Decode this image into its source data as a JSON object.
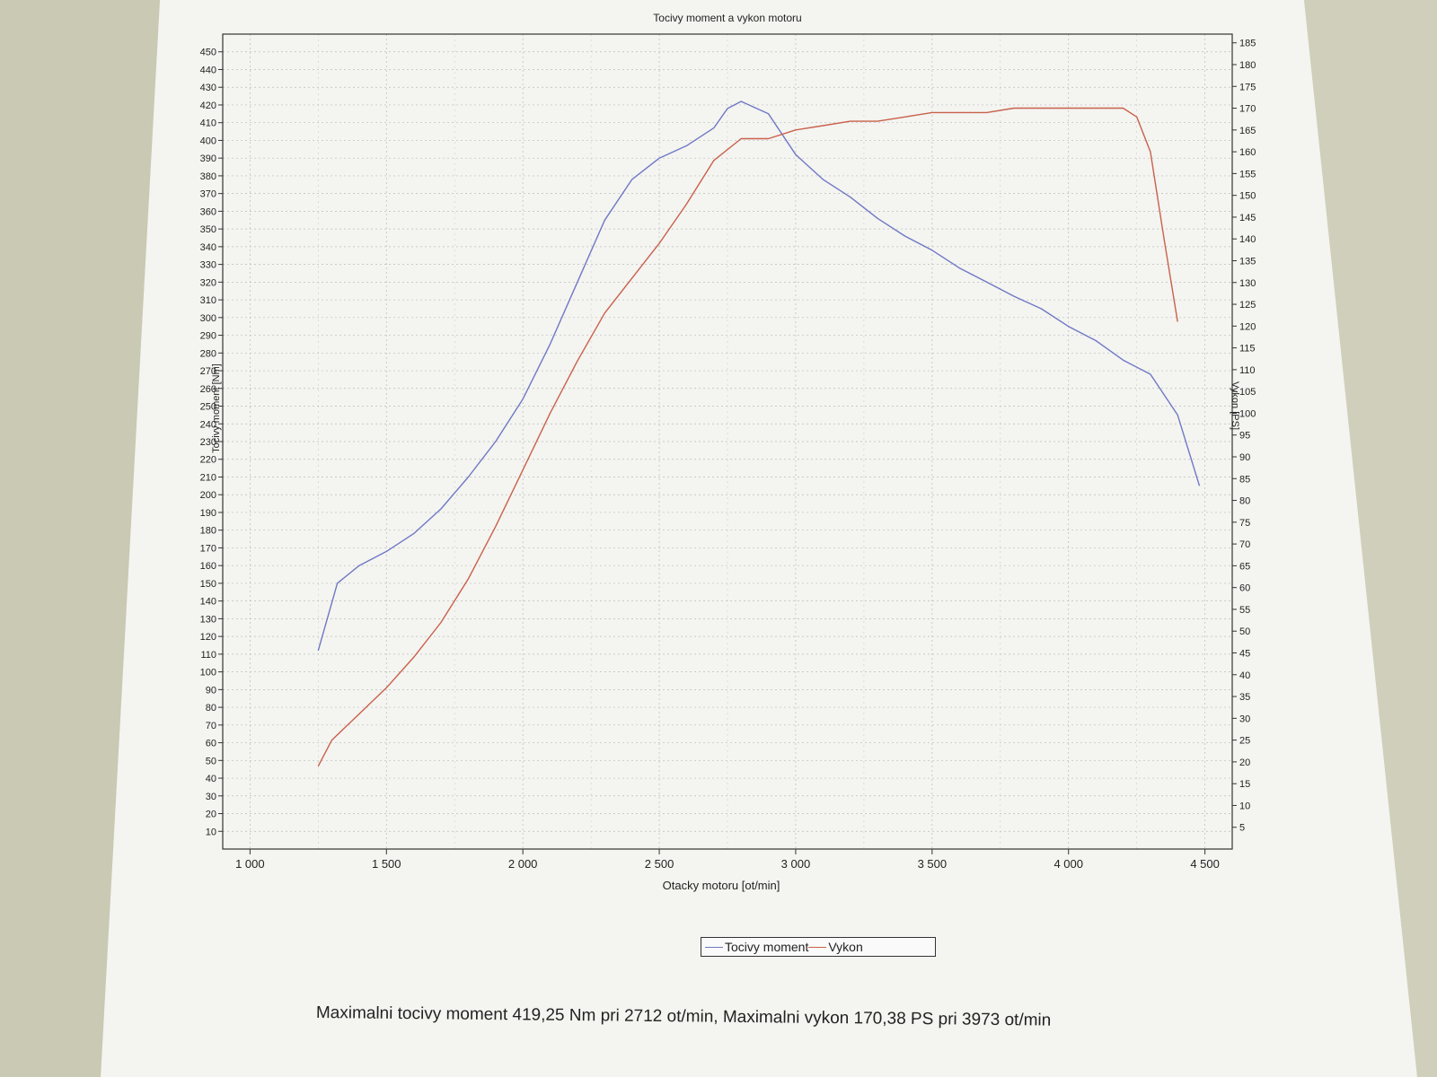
{
  "chart_data": {
    "type": "line",
    "title": "Tocivy moment a vykon motoru",
    "xlabel": "Otacky motoru [ot/min]",
    "ylabel_left": "Tocivy moment [Nm]",
    "ylabel_right": "Vykon [PS]",
    "xlim": [
      900,
      4600
    ],
    "ylim_left": [
      0,
      460
    ],
    "ylim_right": [
      0,
      187
    ],
    "x_ticks": [
      1000,
      1500,
      2000,
      2500,
      3000,
      3500,
      4000,
      4500
    ],
    "x_tick_labels": [
      "1 000",
      "1 500",
      "2 000",
      "2 500",
      "3 000",
      "3 500",
      "4 000",
      "4 500"
    ],
    "y_left_ticks": [
      10,
      20,
      30,
      40,
      50,
      60,
      70,
      80,
      90,
      100,
      110,
      120,
      130,
      140,
      150,
      160,
      170,
      180,
      190,
      200,
      210,
      220,
      230,
      240,
      250,
      260,
      270,
      280,
      290,
      300,
      310,
      320,
      330,
      340,
      350,
      360,
      370,
      380,
      390,
      400,
      410,
      420,
      430,
      440,
      450
    ],
    "y_right_ticks": [
      5,
      10,
      15,
      20,
      25,
      30,
      35,
      40,
      45,
      50,
      55,
      60,
      65,
      70,
      75,
      80,
      85,
      90,
      95,
      100,
      105,
      110,
      115,
      120,
      125,
      130,
      135,
      140,
      145,
      150,
      155,
      160,
      165,
      170,
      175,
      180,
      185
    ],
    "grid": true,
    "legend_position": "bottom-center",
    "series": [
      {
        "name": "Tocivy moment",
        "axis": "left",
        "color": "#6f78c4",
        "x": [
          1250,
          1320,
          1400,
          1500,
          1600,
          1700,
          1800,
          1900,
          2000,
          2100,
          2200,
          2300,
          2400,
          2500,
          2600,
          2700,
          2750,
          2800,
          2900,
          3000,
          3100,
          3200,
          3300,
          3400,
          3500,
          3600,
          3700,
          3800,
          3900,
          4000,
          4100,
          4200,
          4300,
          4400,
          4480
        ],
        "y": [
          112,
          150,
          160,
          168,
          178,
          192,
          210,
          230,
          254,
          285,
          320,
          355,
          378,
          390,
          397,
          407,
          418,
          422,
          415,
          392,
          378,
          368,
          356,
          346,
          338,
          328,
          320,
          312,
          305,
          295,
          287,
          276,
          268,
          245,
          205
        ]
      },
      {
        "name": "Vykon",
        "axis": "right",
        "color": "#c8614a",
        "x": [
          1250,
          1300,
          1400,
          1500,
          1600,
          1700,
          1800,
          1900,
          2000,
          2100,
          2200,
          2300,
          2400,
          2500,
          2600,
          2700,
          2800,
          2900,
          3000,
          3100,
          3200,
          3300,
          3400,
          3500,
          3600,
          3700,
          3800,
          3900,
          4000,
          4100,
          4200,
          4250,
          4300,
          4350,
          4400
        ],
        "y": [
          19,
          25,
          31,
          37,
          44,
          52,
          62,
          74,
          87,
          100,
          112,
          123,
          131,
          139,
          148,
          158,
          163,
          163,
          165,
          166,
          167,
          167,
          168,
          169,
          169,
          169,
          170,
          170,
          170,
          170,
          170,
          168,
          160,
          140,
          121
        ]
      }
    ]
  },
  "legend": {
    "item1": "Tocivy moment",
    "item2": "Vykon"
  },
  "summary": "Maximalni tocivy moment 419,25 Nm pri 2712 ot/min,  Maximalni vykon 170,38 PS pri 3973 ot/min"
}
